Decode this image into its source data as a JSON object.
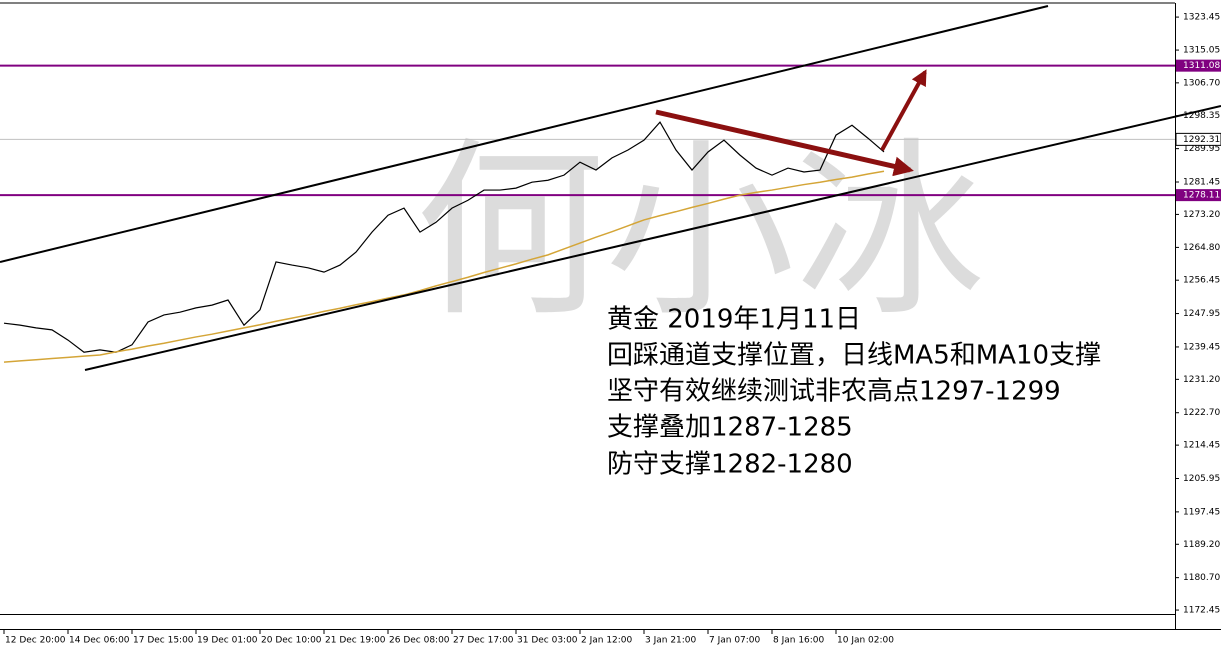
{
  "chart_data": {
    "type": "line",
    "watermark": "何小冰",
    "annotation": [
      "黄金 2019年1月11日",
      "回踩通道支撑位置，日线MA5和MA10支撑",
      "坚守有效继续测试非农高点1297-1299",
      "支撑叠加1287-1285",
      "防守支撑1282-1280"
    ],
    "categories": [
      "12 Dec 20:00",
      null,
      null,
      null,
      "14 Dec 06:00",
      null,
      null,
      null,
      "17 Dec 15:00",
      null,
      null,
      null,
      "19 Dec 01:00",
      null,
      null,
      null,
      "20 Dec 10:00",
      null,
      null,
      null,
      "21 Dec 19:00",
      null,
      null,
      null,
      "26 Dec 08:00",
      null,
      null,
      null,
      "27 Dec 17:00",
      null,
      null,
      null,
      "31 Dec 03:00",
      null,
      null,
      null,
      "2 Jan 12:00",
      null,
      null,
      null,
      "3 Jan 21:00",
      null,
      null,
      null,
      "7 Jan 07:00",
      null,
      null,
      null,
      "8 Jan 16:00",
      null,
      null,
      null,
      "10 Jan 02:00",
      null,
      null,
      null
    ],
    "series": [
      {
        "color": "#000000",
        "values": [
          1245.5,
          1245.0,
          1244.3,
          1243.8,
          1241.2,
          1238.1,
          1238.7,
          1238.1,
          1240.0,
          1245.8,
          1247.6,
          1248.3,
          1249.4,
          1250.1,
          1251.4,
          1245.0,
          1248.9,
          1261.1,
          1260.3,
          1259.6,
          1258.5,
          1260.3,
          1263.6,
          1268.7,
          1273.0,
          1274.8,
          1268.7,
          1271.2,
          1274.8,
          1276.8,
          1279.4,
          1279.4,
          1279.9,
          1281.4,
          1281.9,
          1283.2,
          1286.5,
          1284.5,
          1287.6,
          1289.6,
          1292.1,
          1296.7,
          1289.6,
          1284.5,
          1289.1,
          1292.1,
          1288.3,
          1285.0,
          1283.2,
          1285.0,
          1284.0,
          1284.5,
          1293.4,
          1295.9,
          1292.6,
          1289.1
        ]
      },
      {
        "color": "#d4a537",
        "values": [
          1235.6,
          1235.9,
          1236.2,
          1236.5,
          1236.8,
          1237.1,
          1237.4,
          1238.2,
          1238.9,
          1239.7,
          1240.4,
          1241.2,
          1242.0,
          1242.7,
          1243.5,
          1244.3,
          1245.1,
          1246.0,
          1246.8,
          1247.6,
          1248.5,
          1249.3,
          1250.2,
          1251.0,
          1251.9,
          1252.7,
          1253.8,
          1255.0,
          1256.1,
          1257.2,
          1258.4,
          1259.5,
          1260.6,
          1261.8,
          1262.9,
          1264.4,
          1265.9,
          1267.4,
          1268.8,
          1270.3,
          1271.8,
          1272.9,
          1273.9,
          1275.0,
          1276.0,
          1277.1,
          1278.1,
          1278.8,
          1279.4,
          1280.1,
          1280.8,
          1281.4,
          1282.1,
          1282.7,
          1283.5,
          1284.2
        ]
      }
    ],
    "levels": [
      {
        "value": 1311.08,
        "color": "#800080"
      },
      {
        "value": 1278.11,
        "color": "#800080"
      },
      {
        "value": 1292.31,
        "color": "#c0c0c0"
      }
    ],
    "ylim": [
      1171.7,
      1327.8
    ],
    "yticks": [
      1323.45,
      1315.05,
      {
        "value": 1306.7,
        "label": "1306.70"
      },
      1298.35,
      1289.95,
      1281.45,
      {
        "value": 1273.2,
        "label": "1273.20"
      },
      {
        "value": 1264.8,
        "label": "1264.80"
      },
      1256.45,
      1247.95,
      1239.45,
      {
        "value": 1231.2,
        "label": "1231.20"
      },
      {
        "value": 1222.7,
        "label": "1222.70"
      },
      1214.45,
      1205.95,
      1197.45,
      {
        "value": 1189.2,
        "label": "1189.20"
      },
      {
        "value": 1180.7,
        "label": "1180.70"
      },
      1172.45
    ]
  }
}
